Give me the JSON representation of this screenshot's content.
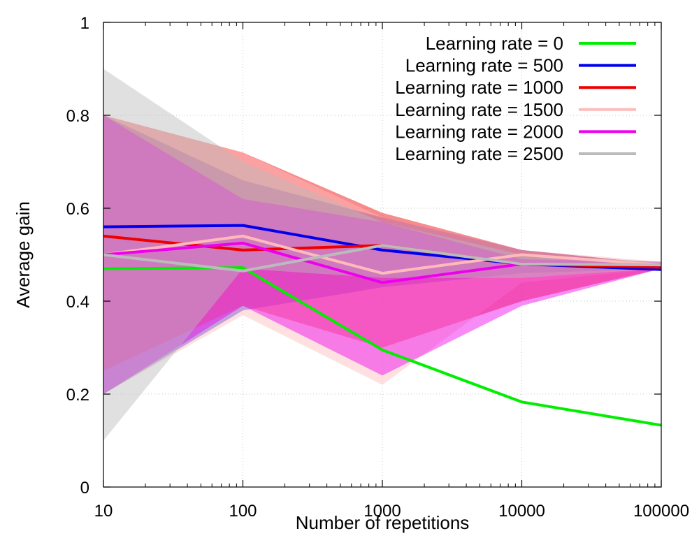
{
  "chart_data": {
    "type": "line",
    "xlabel": "Number of repetitions",
    "ylabel": "Average gain",
    "x_scale": "log",
    "x": [
      10,
      100,
      1000,
      10000,
      100000
    ],
    "x_tick_labels": [
      "10",
      "100",
      "1000",
      "10000",
      "100000"
    ],
    "ylim": [
      0,
      1
    ],
    "y_ticks": [
      0,
      0.2,
      0.4,
      0.6,
      0.8,
      1
    ],
    "y_tick_labels": [
      "0",
      "0.2",
      "0.4",
      "0.6",
      "0.8",
      "1"
    ],
    "grid": true,
    "legend_position": "top-right",
    "series": [
      {
        "name": "Learning rate = 0",
        "color": "#00ee00",
        "values": [
          0.47,
          0.472,
          0.295,
          0.183,
          0.133
        ]
      },
      {
        "name": "Learning rate = 500",
        "color": "#0000ee",
        "values": [
          0.56,
          0.563,
          0.51,
          0.48,
          0.468
        ],
        "band_low": [
          0.2,
          0.38,
          0.43,
          0.46,
          0.47
        ],
        "band_high": [
          0.8,
          0.66,
          0.58,
          0.51,
          0.48
        ]
      },
      {
        "name": "Learning rate = 1000",
        "color": "#ee0000",
        "values": [
          0.54,
          0.51,
          0.52,
          0.48,
          0.473
        ],
        "band_low": [
          0.25,
          0.39,
          0.3,
          0.4,
          0.47
        ],
        "band_high": [
          0.8,
          0.72,
          0.59,
          0.51,
          0.48
        ]
      },
      {
        "name": "Learning rate = 1500",
        "color": "#ffbbbb",
        "values": [
          0.5,
          0.54,
          0.46,
          0.5,
          0.478
        ],
        "band_low": [
          0.2,
          0.37,
          0.22,
          0.44,
          0.47
        ],
        "band_high": [
          0.8,
          0.72,
          0.58,
          0.51,
          0.485
        ]
      },
      {
        "name": "Learning rate = 2000",
        "color": "#ee00ee",
        "values": [
          0.5,
          0.525,
          0.44,
          0.48,
          0.478
        ],
        "band_low": [
          0.2,
          0.39,
          0.24,
          0.39,
          0.47
        ],
        "band_high": [
          0.8,
          0.62,
          0.57,
          0.49,
          0.485
        ]
      },
      {
        "name": "Learning rate = 2500",
        "color": "#bbbbbb",
        "values": [
          0.5,
          0.465,
          0.52,
          0.48,
          0.478
        ],
        "band_low": [
          0.1,
          0.47,
          0.45,
          0.45,
          0.47
        ],
        "band_high": [
          0.9,
          0.7,
          0.57,
          0.5,
          0.485
        ]
      }
    ]
  }
}
